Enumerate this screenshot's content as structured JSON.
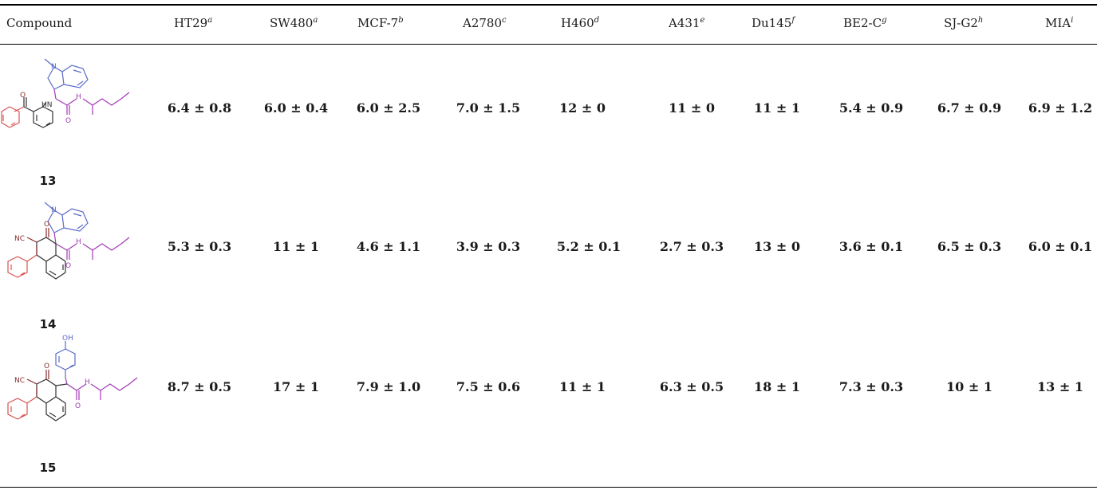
{
  "headers": [
    {
      "label": "Compound",
      "sup": ""
    },
    {
      "label": "HT29",
      "sup": "a"
    },
    {
      "label": "SW480",
      "sup": "a"
    },
    {
      "label": "MCF-7",
      "sup": "b"
    },
    {
      "label": "A2780",
      "sup": "c"
    },
    {
      "label": "H460",
      "sup": "d"
    },
    {
      "label": "A431",
      "sup": "e"
    },
    {
      "label": "Du145",
      "sup": "f"
    },
    {
      "label": "BE2-C",
      "sup": "g"
    },
    {
      "label": "SJ-G2",
      "sup": "h"
    },
    {
      "label": "MIA",
      "sup": "i"
    }
  ],
  "rows": [
    {
      "id": "13",
      "values": [
        "6.4 ± 0.8",
        "6.0 ± 0.4",
        "6.0 ± 2.5",
        "7.0 ± 1.5",
        "12 ± 0",
        "11 ± 0",
        "11 ± 1",
        "5.4 ± 0.9",
        "6.7 ± 0.9",
        "6.9 ± 1.2"
      ]
    },
    {
      "id": "14",
      "values": [
        "5.3 ± 0.3",
        "11 ± 1",
        "4.6 ± 1.1",
        "3.9 ± 0.3",
        "5.2 ± 0.1",
        "2.7 ± 0.3",
        "13 ± 0",
        "3.6 ± 0.1",
        "6.5 ± 0.3",
        "6.0 ± 0.1"
      ]
    },
    {
      "id": "15",
      "values": [
        "8.7 ± 0.5",
        "17 ± 1",
        "7.9 ± 1.0",
        "7.5 ± 0.6",
        "11 ± 1",
        "6.3 ± 0.5",
        "18 ± 1",
        "7.3 ± 0.3",
        "10 ± 1",
        "13 ± 1"
      ]
    }
  ],
  "structure_labels": {
    "N": "N",
    "HN": "HN",
    "O": "O",
    "H": "H",
    "NC": "NC",
    "OH": "OH"
  },
  "colors": {
    "phenyl_red": "#d9534f",
    "indole_blue": "#5a6bc9",
    "amide_purple": "#a23bb5",
    "carbonyl_dark": "#8a2a2a"
  }
}
